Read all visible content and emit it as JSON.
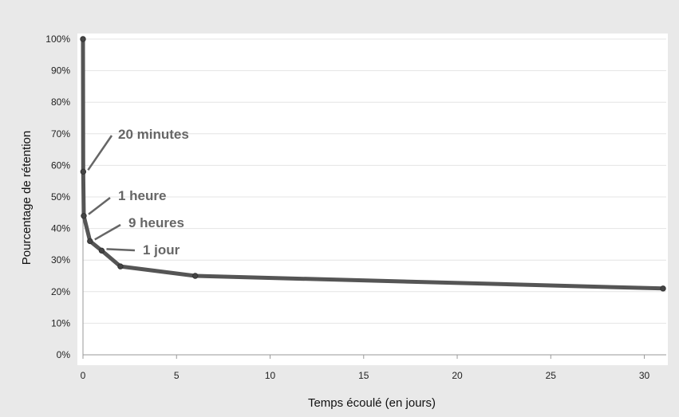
{
  "chart_data": {
    "type": "line",
    "title": "",
    "xlabel": "Temps écoulé (en jours)",
    "ylabel": "Pourcentage de rétention",
    "xlim": [
      0,
      31
    ],
    "ylim": [
      0,
      100
    ],
    "x_ticks": [
      0,
      5,
      10,
      15,
      20,
      25,
      30
    ],
    "y_ticks": [
      0,
      10,
      20,
      30,
      40,
      50,
      60,
      70,
      80,
      90,
      100
    ],
    "y_tick_suffix": "%",
    "grid": true,
    "legend": "none",
    "line_color": "#555555",
    "series": [
      {
        "x": [
          0,
          0.014,
          0.042,
          0.375,
          1,
          2,
          6,
          31
        ],
        "y": [
          100,
          58,
          44,
          36,
          33,
          28,
          25,
          21
        ]
      }
    ],
    "annotations": [
      {
        "text": "20 minutes",
        "x": 0.014,
        "y": 58
      },
      {
        "text": "1 heure",
        "x": 0.042,
        "y": 44
      },
      {
        "text": "9 heures",
        "x": 0.375,
        "y": 36
      },
      {
        "text": "1 jour",
        "x": 1,
        "y": 33
      }
    ]
  }
}
